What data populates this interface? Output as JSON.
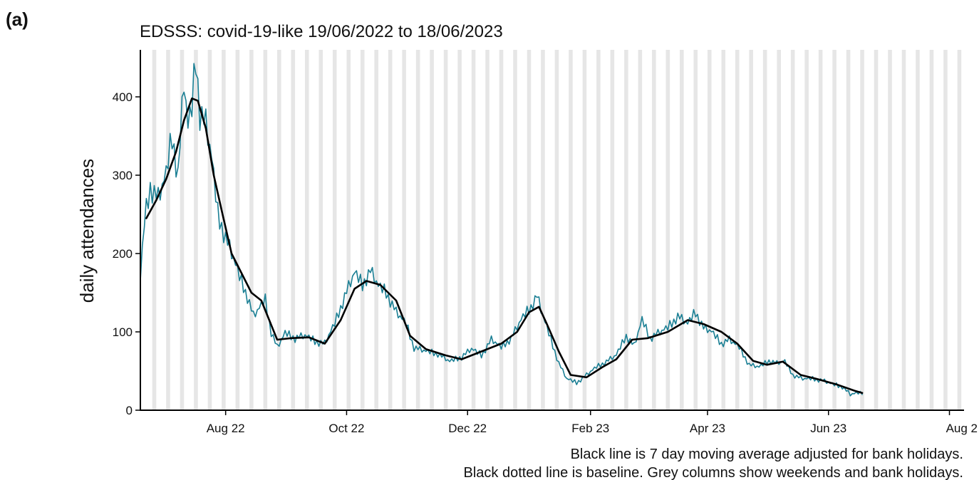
{
  "panel_label": "(a)",
  "caption": {
    "line1": "Black line is 7 day moving average adjusted for bank holidays.",
    "line2": "Black dotted line is baseline. Grey columns show weekends and bank holidays."
  },
  "colors": {
    "daily": "#1a7f94",
    "moving_average": "#000000",
    "weekend_column": "#e6e6e6",
    "axis": "#000000"
  },
  "chart_data": {
    "type": "line",
    "title": "EDSSS: covid-19-like 19/06/2022 to 18/06/2023",
    "xlabel": "",
    "ylabel": "daily attendances",
    "x_range": [
      "2022-06-19",
      "2023-08-08"
    ],
    "ylim": [
      0,
      460
    ],
    "y_ticks": [
      0,
      100,
      200,
      300,
      400
    ],
    "x_ticks": [
      {
        "date": "2022-08-01",
        "label": "Aug 22"
      },
      {
        "date": "2022-10-01",
        "label": "Oct 22"
      },
      {
        "date": "2022-12-01",
        "label": "Dec 22"
      },
      {
        "date": "2023-02-01",
        "label": "Feb 23"
      },
      {
        "date": "2023-04-01",
        "label": "Apr 23"
      },
      {
        "date": "2023-06-01",
        "label": "Jun 23"
      },
      {
        "date": "2023-08-01",
        "label": "Aug 2"
      }
    ],
    "grid": false,
    "grey_columns": "weekends and bank holidays",
    "series": [
      {
        "key": "daily",
        "style": "teal thin line",
        "anchors": [
          [
            "2022-06-19",
            165
          ],
          [
            "2022-06-21",
            240
          ],
          [
            "2022-06-24",
            285
          ],
          [
            "2022-06-28",
            270
          ],
          [
            "2022-07-02",
            300
          ],
          [
            "2022-07-05",
            350
          ],
          [
            "2022-07-08",
            300
          ],
          [
            "2022-07-11",
            420
          ],
          [
            "2022-07-13",
            360
          ],
          [
            "2022-07-15",
            385
          ],
          [
            "2022-07-17",
            450
          ],
          [
            "2022-07-19",
            380
          ],
          [
            "2022-07-22",
            365
          ],
          [
            "2022-07-25",
            320
          ],
          [
            "2022-07-28",
            250
          ],
          [
            "2022-08-01",
            220
          ],
          [
            "2022-08-04",
            200
          ],
          [
            "2022-08-08",
            170
          ],
          [
            "2022-08-12",
            145
          ],
          [
            "2022-08-15",
            120
          ],
          [
            "2022-08-18",
            130
          ],
          [
            "2022-08-21",
            140
          ],
          [
            "2022-08-24",
            100
          ],
          [
            "2022-08-27",
            80
          ],
          [
            "2022-08-31",
            98
          ],
          [
            "2022-09-05",
            92
          ],
          [
            "2022-09-10",
            95
          ],
          [
            "2022-09-15",
            88
          ],
          [
            "2022-09-20",
            85
          ],
          [
            "2022-09-25",
            110
          ],
          [
            "2022-09-30",
            145
          ],
          [
            "2022-10-05",
            175
          ],
          [
            "2022-10-09",
            160
          ],
          [
            "2022-10-13",
            178
          ],
          [
            "2022-10-17",
            158
          ],
          [
            "2022-10-21",
            150
          ],
          [
            "2022-10-26",
            125
          ],
          [
            "2022-10-31",
            110
          ],
          [
            "2022-11-04",
            80
          ],
          [
            "2022-11-10",
            75
          ],
          [
            "2022-11-16",
            72
          ],
          [
            "2022-11-22",
            62
          ],
          [
            "2022-11-28",
            68
          ],
          [
            "2022-12-03",
            78
          ],
          [
            "2022-12-08",
            70
          ],
          [
            "2022-12-13",
            90
          ],
          [
            "2022-12-18",
            80
          ],
          [
            "2022-12-23",
            92
          ],
          [
            "2022-12-28",
            115
          ],
          [
            "2023-01-02",
            132
          ],
          [
            "2023-01-05",
            146
          ],
          [
            "2023-01-08",
            120
          ],
          [
            "2023-01-12",
            90
          ],
          [
            "2023-01-16",
            60
          ],
          [
            "2023-01-20",
            40
          ],
          [
            "2023-01-25",
            35
          ],
          [
            "2023-01-30",
            45
          ],
          [
            "2023-02-04",
            55
          ],
          [
            "2023-02-09",
            62
          ],
          [
            "2023-02-14",
            70
          ],
          [
            "2023-02-19",
            95
          ],
          [
            "2023-02-23",
            82
          ],
          [
            "2023-02-27",
            115
          ],
          [
            "2023-03-03",
            92
          ],
          [
            "2023-03-07",
            98
          ],
          [
            "2023-03-12",
            105
          ],
          [
            "2023-03-17",
            120
          ],
          [
            "2023-03-22",
            110
          ],
          [
            "2023-03-26",
            125
          ],
          [
            "2023-03-30",
            105
          ],
          [
            "2023-04-03",
            100
          ],
          [
            "2023-04-08",
            85
          ],
          [
            "2023-04-12",
            90
          ],
          [
            "2023-04-17",
            80
          ],
          [
            "2023-04-22",
            58
          ],
          [
            "2023-04-27",
            55
          ],
          [
            "2023-05-02",
            63
          ],
          [
            "2023-05-06",
            60
          ],
          [
            "2023-05-10",
            62
          ],
          [
            "2023-05-14",
            45
          ],
          [
            "2023-05-19",
            40
          ],
          [
            "2023-05-24",
            40
          ],
          [
            "2023-05-29",
            38
          ],
          [
            "2023-06-03",
            33
          ],
          [
            "2023-06-08",
            30
          ],
          [
            "2023-06-12",
            20
          ],
          [
            "2023-06-16",
            22
          ],
          [
            "2023-06-18",
            20
          ]
        ]
      },
      {
        "key": "moving_average",
        "style": "black thick line",
        "anchors": [
          [
            "2022-06-22",
            245
          ],
          [
            "2022-06-27",
            268
          ],
          [
            "2022-07-02",
            295
          ],
          [
            "2022-07-07",
            330
          ],
          [
            "2022-07-11",
            370
          ],
          [
            "2022-07-15",
            398
          ],
          [
            "2022-07-18",
            395
          ],
          [
            "2022-07-22",
            360
          ],
          [
            "2022-07-26",
            300
          ],
          [
            "2022-07-30",
            255
          ],
          [
            "2022-08-04",
            200
          ],
          [
            "2022-08-09",
            175
          ],
          [
            "2022-08-14",
            150
          ],
          [
            "2022-08-19",
            140
          ],
          [
            "2022-08-23",
            115
          ],
          [
            "2022-08-27",
            90
          ],
          [
            "2022-09-03",
            92
          ],
          [
            "2022-09-12",
            93
          ],
          [
            "2022-09-20",
            85
          ],
          [
            "2022-09-28",
            115
          ],
          [
            "2022-10-05",
            155
          ],
          [
            "2022-10-11",
            165
          ],
          [
            "2022-10-18",
            160
          ],
          [
            "2022-10-26",
            140
          ],
          [
            "2022-11-02",
            95
          ],
          [
            "2022-11-10",
            78
          ],
          [
            "2022-11-20",
            70
          ],
          [
            "2022-11-28",
            65
          ],
          [
            "2022-12-08",
            75
          ],
          [
            "2022-12-18",
            85
          ],
          [
            "2022-12-26",
            100
          ],
          [
            "2023-01-01",
            125
          ],
          [
            "2023-01-06",
            132
          ],
          [
            "2023-01-10",
            110
          ],
          [
            "2023-01-16",
            75
          ],
          [
            "2023-01-22",
            45
          ],
          [
            "2023-01-30",
            42
          ],
          [
            "2023-02-07",
            55
          ],
          [
            "2023-02-14",
            65
          ],
          [
            "2023-02-22",
            90
          ],
          [
            "2023-03-02",
            92
          ],
          [
            "2023-03-12",
            100
          ],
          [
            "2023-03-22",
            115
          ],
          [
            "2023-03-30",
            110
          ],
          [
            "2023-04-08",
            100
          ],
          [
            "2023-04-16",
            85
          ],
          [
            "2023-04-24",
            63
          ],
          [
            "2023-05-01",
            58
          ],
          [
            "2023-05-09",
            62
          ],
          [
            "2023-05-18",
            45
          ],
          [
            "2023-05-26",
            40
          ],
          [
            "2023-06-05",
            33
          ],
          [
            "2023-06-14",
            25
          ],
          [
            "2023-06-18",
            22
          ]
        ]
      }
    ]
  }
}
